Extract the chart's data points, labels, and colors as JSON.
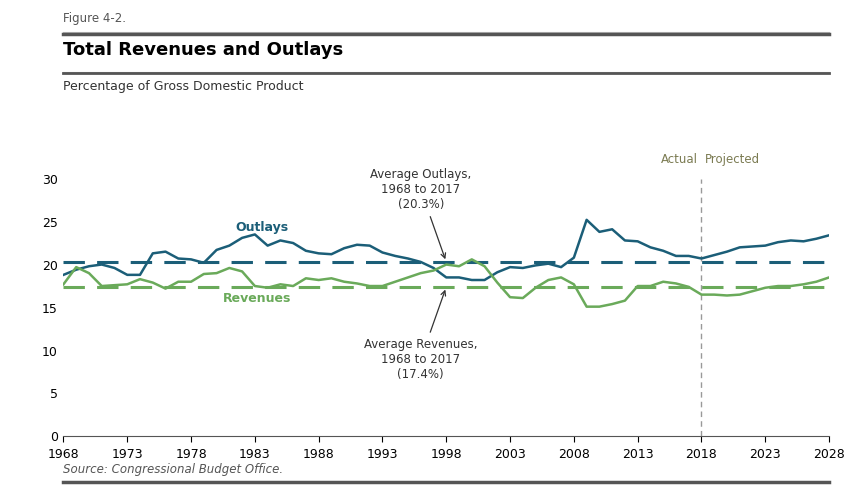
{
  "figure_label": "Figure 4-2.",
  "title": "Total Revenues and Outlays",
  "subtitle": "Percentage of Gross Domestic Product",
  "source": "Source: Congressional Budget Office.",
  "actual_label": "Actual",
  "projected_label": "Projected",
  "divider_year": 2018,
  "avg_outlays": 20.3,
  "avg_revenues": 17.4,
  "avg_outlays_label": "Average Outlays,\n1968 to 2017\n(20.3%)",
  "avg_revenues_label": "Average Revenues,\n1968 to 2017\n(17.4%)",
  "outlays_label": "Outlays",
  "revenues_label": "Revenues",
  "outlays_color": "#1b5e78",
  "revenues_color": "#6aaa5a",
  "background_color": "#ffffff",
  "ylim": [
    0,
    30
  ],
  "yticks": [
    0,
    5,
    10,
    15,
    20,
    25,
    30
  ],
  "years": [
    1968,
    1969,
    1970,
    1971,
    1972,
    1973,
    1974,
    1975,
    1976,
    1977,
    1978,
    1979,
    1980,
    1981,
    1982,
    1983,
    1984,
    1985,
    1986,
    1987,
    1988,
    1989,
    1990,
    1991,
    1992,
    1993,
    1994,
    1995,
    1996,
    1997,
    1998,
    1999,
    2000,
    2001,
    2002,
    2003,
    2004,
    2005,
    2006,
    2007,
    2008,
    2009,
    2010,
    2011,
    2012,
    2013,
    2014,
    2015,
    2016,
    2017,
    2018,
    2019,
    2020,
    2021,
    2022,
    2023,
    2024,
    2025,
    2026,
    2027,
    2028
  ],
  "outlays": [
    18.8,
    19.4,
    19.8,
    20.0,
    19.6,
    18.8,
    18.8,
    21.3,
    21.5,
    20.7,
    20.6,
    20.2,
    21.7,
    22.2,
    23.1,
    23.5,
    22.2,
    22.8,
    22.5,
    21.6,
    21.3,
    21.2,
    21.9,
    22.3,
    22.2,
    21.4,
    21.0,
    20.7,
    20.3,
    19.6,
    18.5,
    18.5,
    18.2,
    18.2,
    19.1,
    19.7,
    19.6,
    19.9,
    20.1,
    19.7,
    20.8,
    25.2,
    23.8,
    24.1,
    22.8,
    22.7,
    22.0,
    21.6,
    21.0,
    21.0,
    20.7,
    21.1,
    21.5,
    22.0,
    22.1,
    22.2,
    22.6,
    22.8,
    22.7,
    23.0,
    23.4
  ],
  "revenues": [
    17.7,
    19.7,
    19.0,
    17.5,
    17.6,
    17.7,
    18.3,
    17.9,
    17.2,
    18.0,
    18.0,
    18.9,
    19.0,
    19.6,
    19.2,
    17.5,
    17.3,
    17.7,
    17.5,
    18.4,
    18.2,
    18.4,
    18.0,
    17.8,
    17.5,
    17.5,
    18.0,
    18.5,
    19.0,
    19.3,
    20.0,
    19.8,
    20.6,
    19.8,
    17.9,
    16.2,
    16.1,
    17.3,
    18.2,
    18.5,
    17.7,
    15.1,
    15.1,
    15.4,
    15.8,
    17.5,
    17.5,
    18.0,
    17.8,
    17.4,
    16.5,
    16.5,
    16.4,
    16.5,
    16.9,
    17.3,
    17.5,
    17.5,
    17.7,
    18.0,
    18.5
  ],
  "header_color": "#7b7b52",
  "annotation_color": "#333333",
  "divider_color": "#999999"
}
